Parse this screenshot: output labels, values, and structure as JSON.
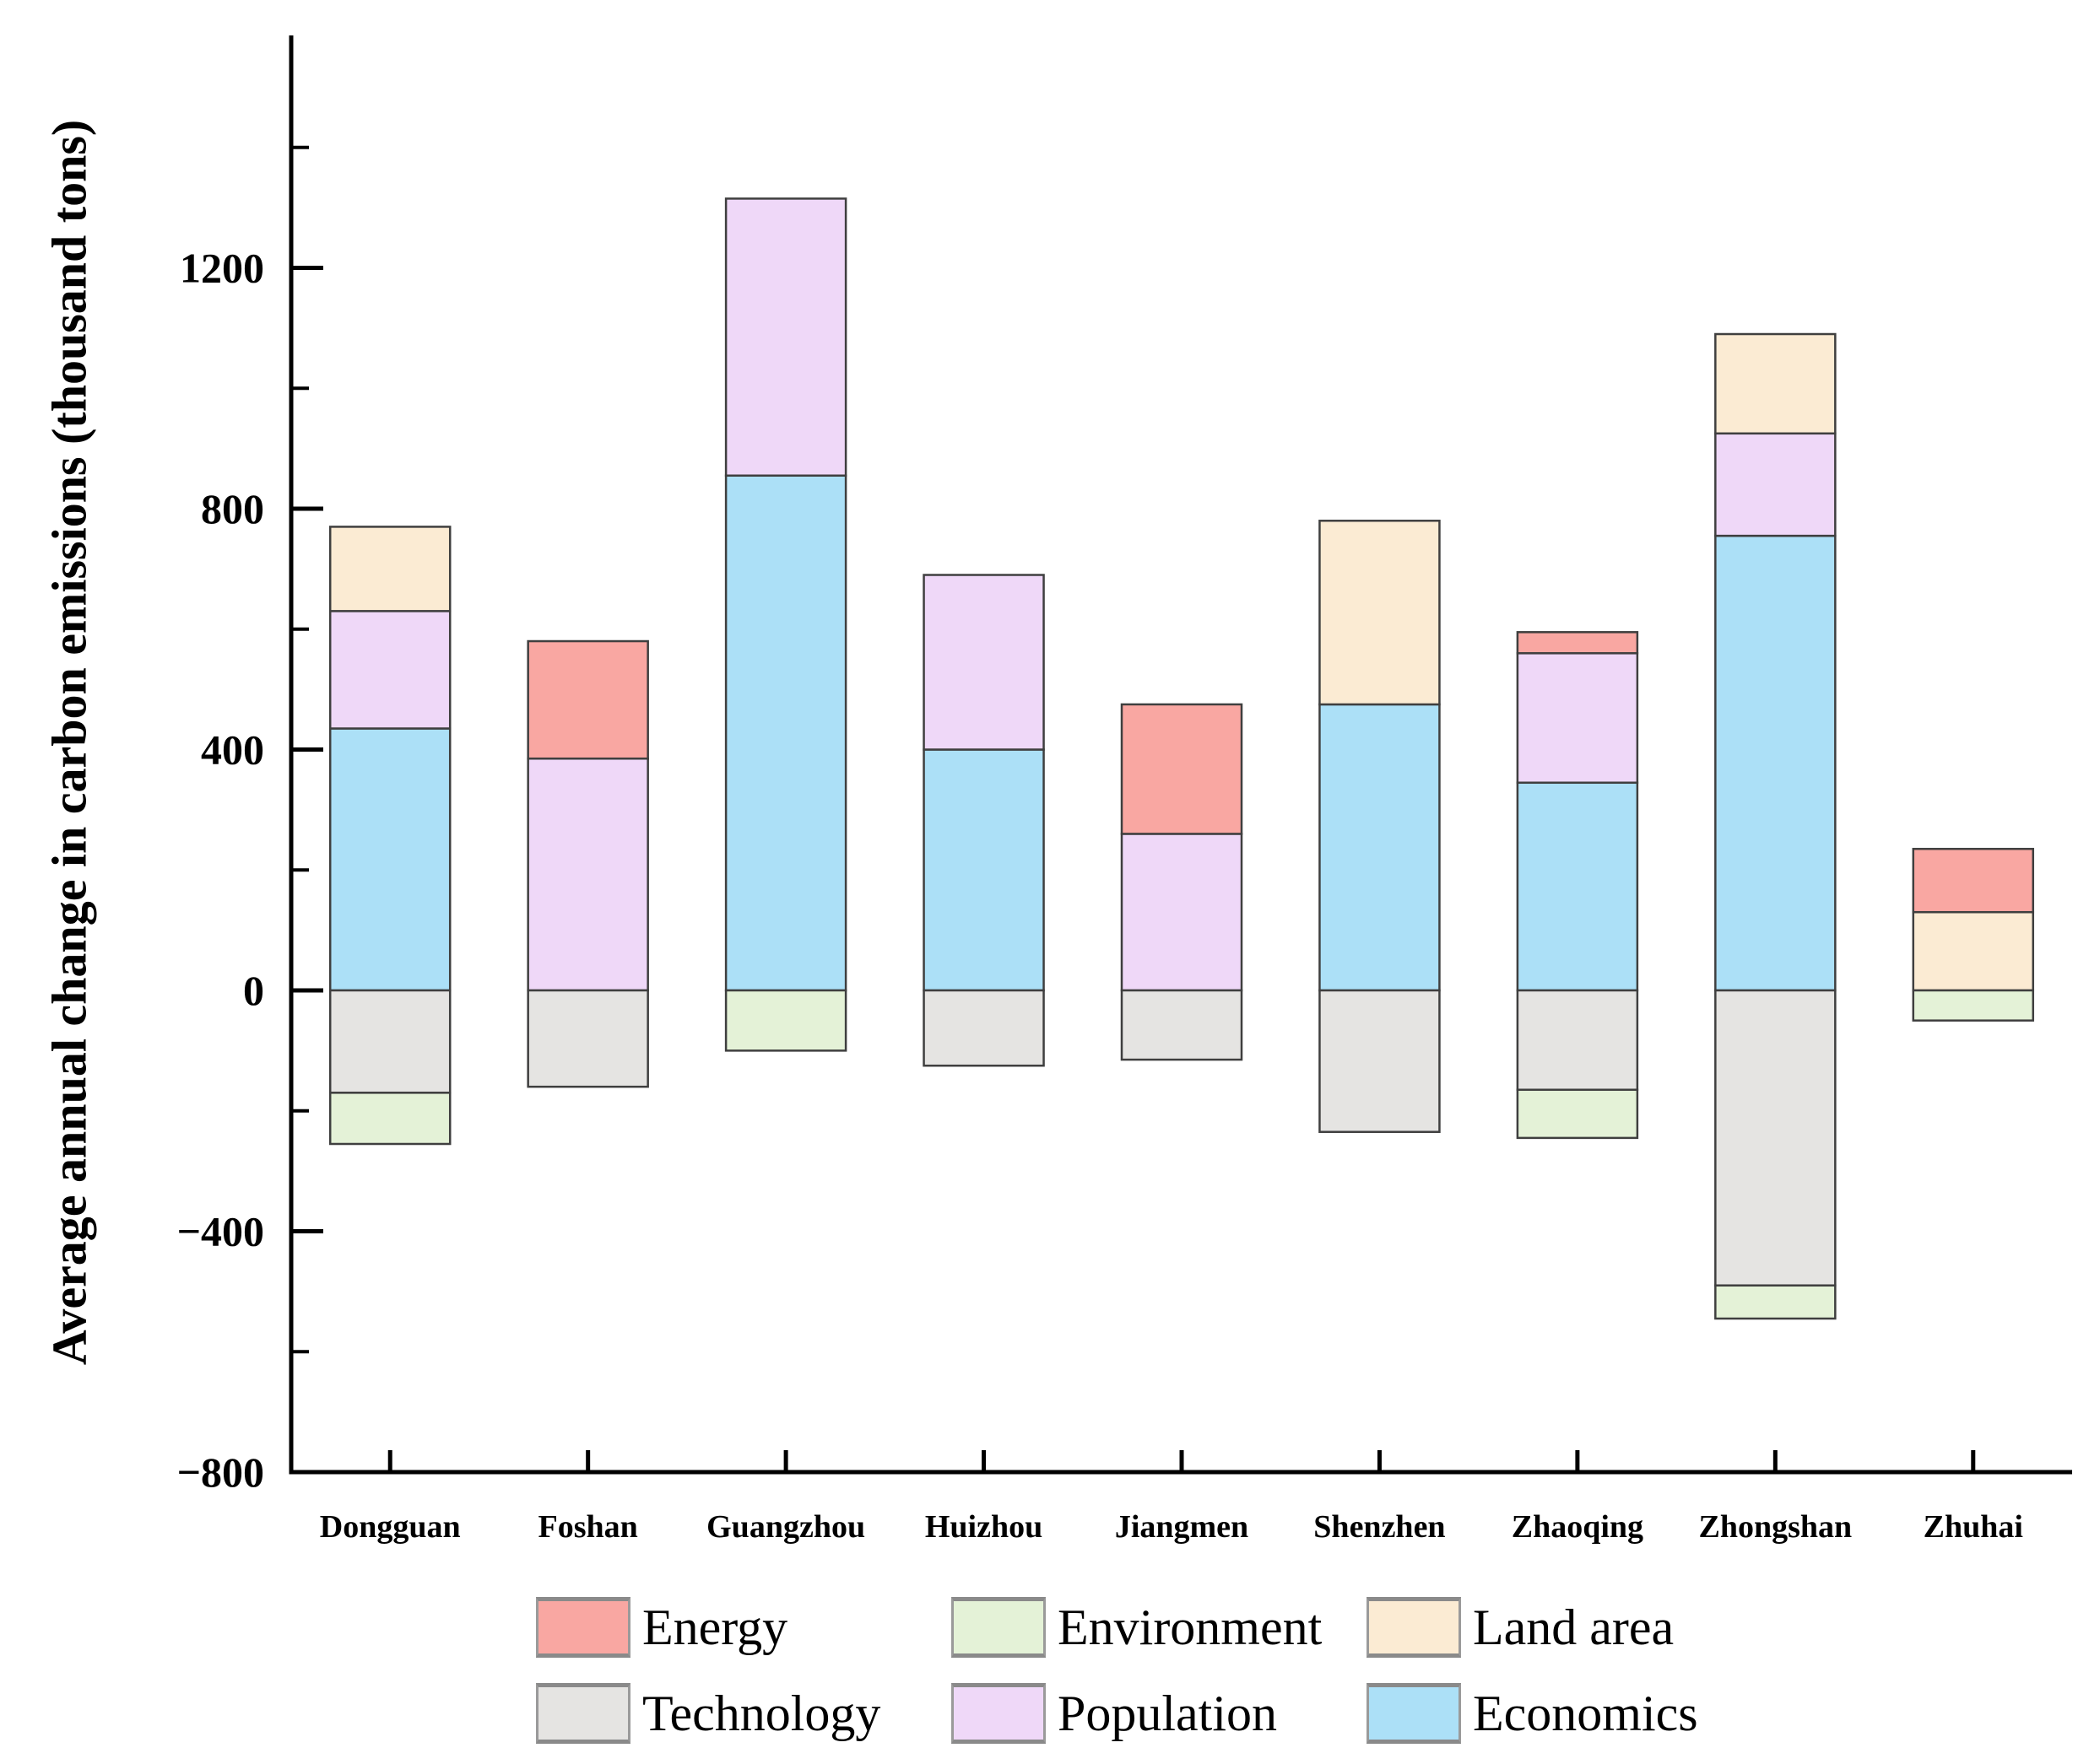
{
  "figure": {
    "ylabel": "Average annual change in carbon emissions (thousand tons)"
  },
  "chart_data": {
    "type": "bar",
    "stacked": true,
    "title": "",
    "xlabel": "",
    "ylabel": "Average annual change in carbon emissions (thousand tons)",
    "value_unit": "thousand tons",
    "categories": [
      "Dongguan",
      "Foshan",
      "Guangzhou",
      "Huizhou",
      "Jiangmen",
      "Shenzhen",
      "Zhaoqing",
      "Zhongshan",
      "Zhuhai"
    ],
    "series": [
      {
        "name": "Energy",
        "color": "#F9A7A2",
        "values": [
          0,
          195,
          0,
          0,
          215,
          0,
          35,
          0,
          105
        ]
      },
      {
        "name": "Environment",
        "color": "#E4F2D7",
        "values": [
          -85,
          0,
          -100,
          0,
          0,
          0,
          -80,
          -55,
          -50
        ]
      },
      {
        "name": "Land area",
        "color": "#FBEBD3",
        "values": [
          140,
          0,
          0,
          0,
          0,
          305,
          0,
          165,
          130
        ]
      },
      {
        "name": "Technology",
        "color": "#E5E4E2",
        "values": [
          -170,
          -160,
          0,
          -125,
          -115,
          -235,
          -165,
          -490,
          0
        ]
      },
      {
        "name": "Population",
        "color": "#EFD8F8",
        "values": [
          195,
          385,
          460,
          290,
          260,
          0,
          215,
          170,
          0
        ]
      },
      {
        "name": "Economics",
        "color": "#ACE0F7",
        "values": [
          435,
          0,
          855,
          400,
          0,
          475,
          345,
          755,
          0
        ]
      }
    ],
    "stack_order_up": [
      "Economics",
      "Population",
      "Land area",
      "Energy"
    ],
    "stack_order_down": [
      "Technology",
      "Environment"
    ],
    "ylim": [
      -800,
      1560
    ],
    "y_major_ticks": [
      -800,
      -400,
      0,
      400,
      800,
      1200
    ],
    "y_major_tick_labels": [
      "−800",
      "−400",
      "0",
      "400",
      "800",
      "1200"
    ],
    "y_minor_ticks": [
      -600,
      -200,
      200,
      600,
      1000,
      1400
    ],
    "grid": false,
    "legend_position": "bottom",
    "legend_rows": [
      [
        "Energy",
        "Environment",
        "Land area"
      ],
      [
        "Technology",
        "Population",
        "Economics"
      ]
    ],
    "axis_color": "#000000",
    "segment_border_color": "#3F3F3F"
  }
}
